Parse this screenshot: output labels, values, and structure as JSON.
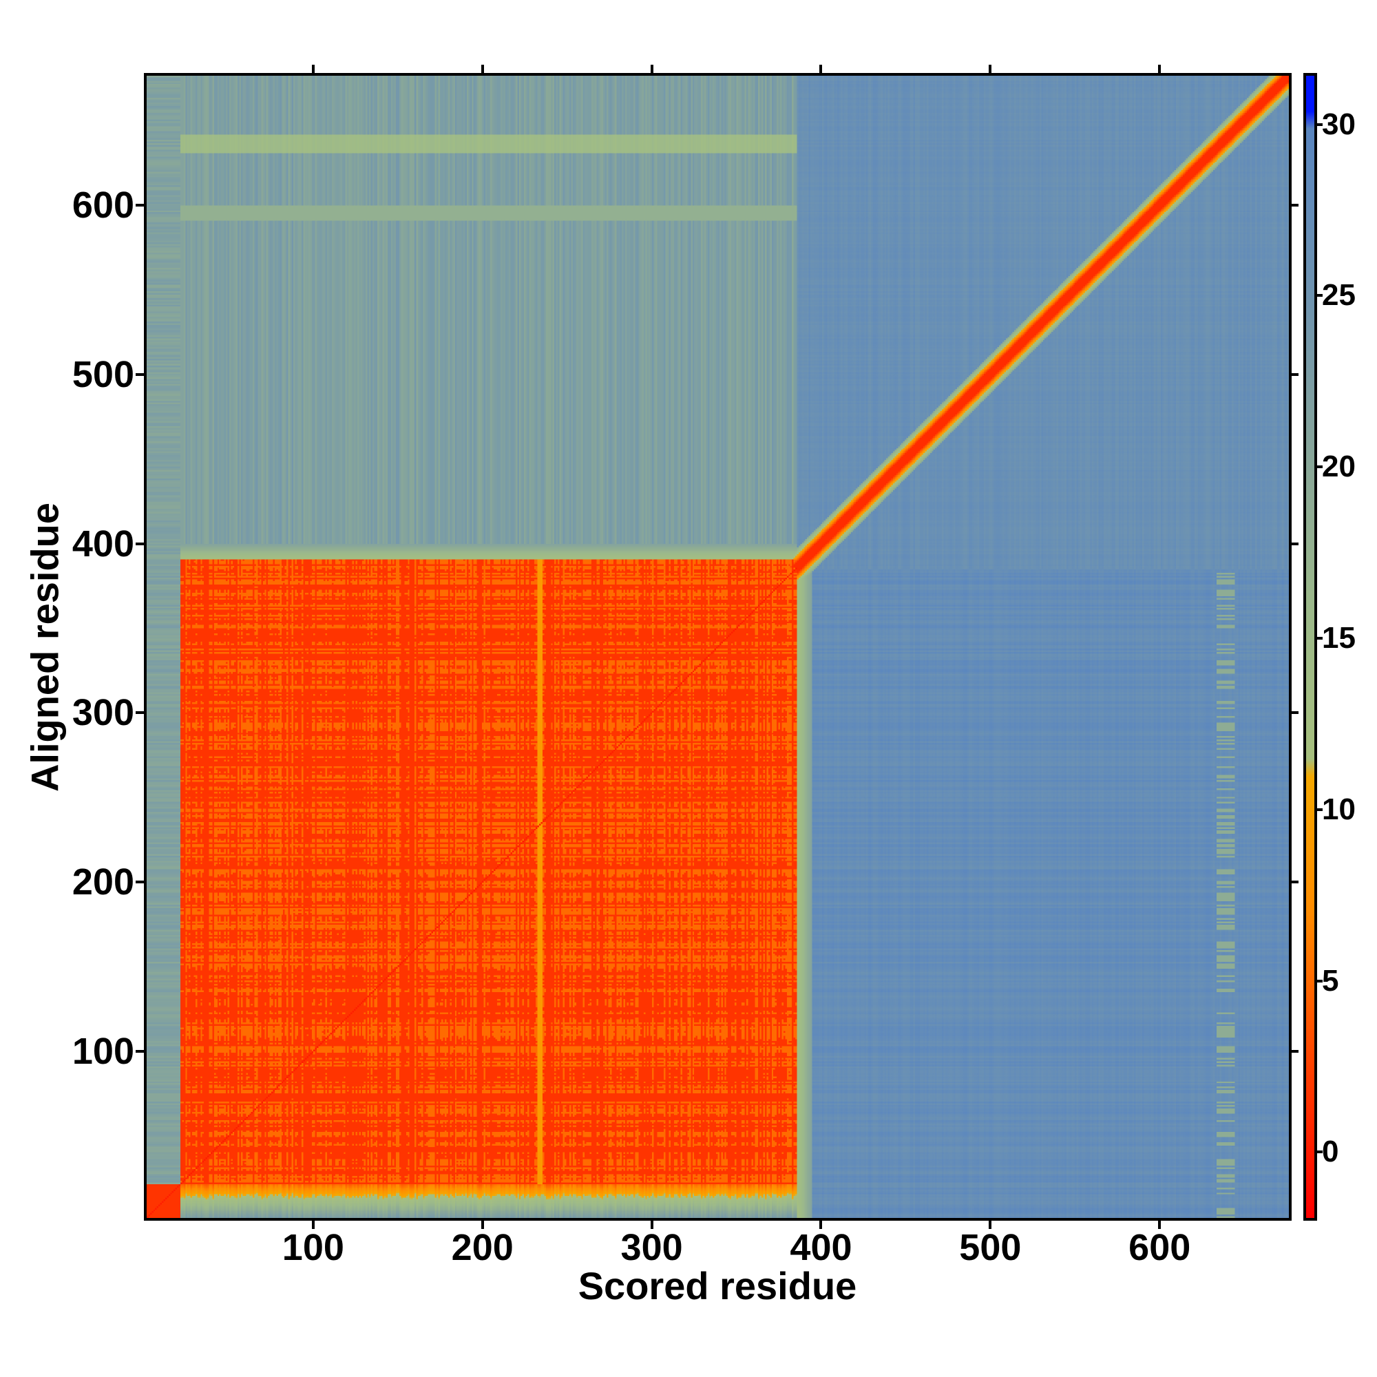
{
  "chart_data": {
    "type": "heatmap",
    "title": "",
    "xlabel": "Scored residue",
    "ylabel": "Aligned residue",
    "xlim": [
      0,
      678
    ],
    "ylim": [
      0,
      678
    ],
    "xticks": [
      "100",
      "200",
      "300",
      "400",
      "500",
      "600"
    ],
    "yticks": [
      "100",
      "200",
      "300",
      "400",
      "500",
      "600"
    ],
    "tick_values": [
      100,
      200,
      300,
      400,
      500,
      600
    ],
    "colorbar": {
      "range": [
        -2,
        31.5
      ],
      "ticks": [
        "0",
        "5",
        "10",
        "15",
        "20",
        "25",
        "30"
      ],
      "tick_values": [
        0,
        5,
        10,
        15,
        20,
        25,
        30
      ],
      "stops": [
        {
          "v": -2,
          "color": "#ff0000"
        },
        {
          "v": 3,
          "color": "#ff4a00"
        },
        {
          "v": 7,
          "color": "#ff8c00"
        },
        {
          "v": 11,
          "color": "#f5a800"
        },
        {
          "v": 11.5,
          "color": "#a7c07e"
        },
        {
          "v": 16,
          "color": "#9cb98a"
        },
        {
          "v": 20,
          "color": "#8aa898"
        },
        {
          "v": 25,
          "color": "#6f94b0"
        },
        {
          "v": 30,
          "color": "#5a86c0"
        },
        {
          "v": 30.5,
          "color": "#0015ff"
        },
        {
          "v": 31.5,
          "color": "#0015ff"
        }
      ]
    },
    "regions": [
      {
        "name": "domain-1 block",
        "x": [
          20,
          385
        ],
        "y": [
          20,
          390
        ],
        "value": 3
      },
      {
        "name": "diagonal",
        "x": [
          0,
          678
        ],
        "y": [
          0,
          678
        ],
        "value": 1
      },
      {
        "name": "N-terminus block",
        "x": [
          0,
          20
        ],
        "y": [
          0,
          20
        ],
        "value": 2
      },
      {
        "name": "stripe",
        "x": [
          20,
          385
        ],
        "y": [
          632,
          642
        ],
        "value": 14
      },
      {
        "name": "stripe",
        "x": [
          20,
          385
        ],
        "y": [
          592,
          600
        ],
        "value": 17
      },
      {
        "name": "domain-1 vs C-term",
        "x": [
          20,
          385
        ],
        "y": [
          390,
          678
        ],
        "value": 23
      },
      {
        "name": "C-term vs domain-1",
        "x": [
          385,
          678
        ],
        "y": [
          0,
          385
        ],
        "value": 28
      },
      {
        "name": "C-term vs C-term",
        "x": [
          385,
          678
        ],
        "y": [
          385,
          678
        ],
        "value": 26
      }
    ]
  }
}
